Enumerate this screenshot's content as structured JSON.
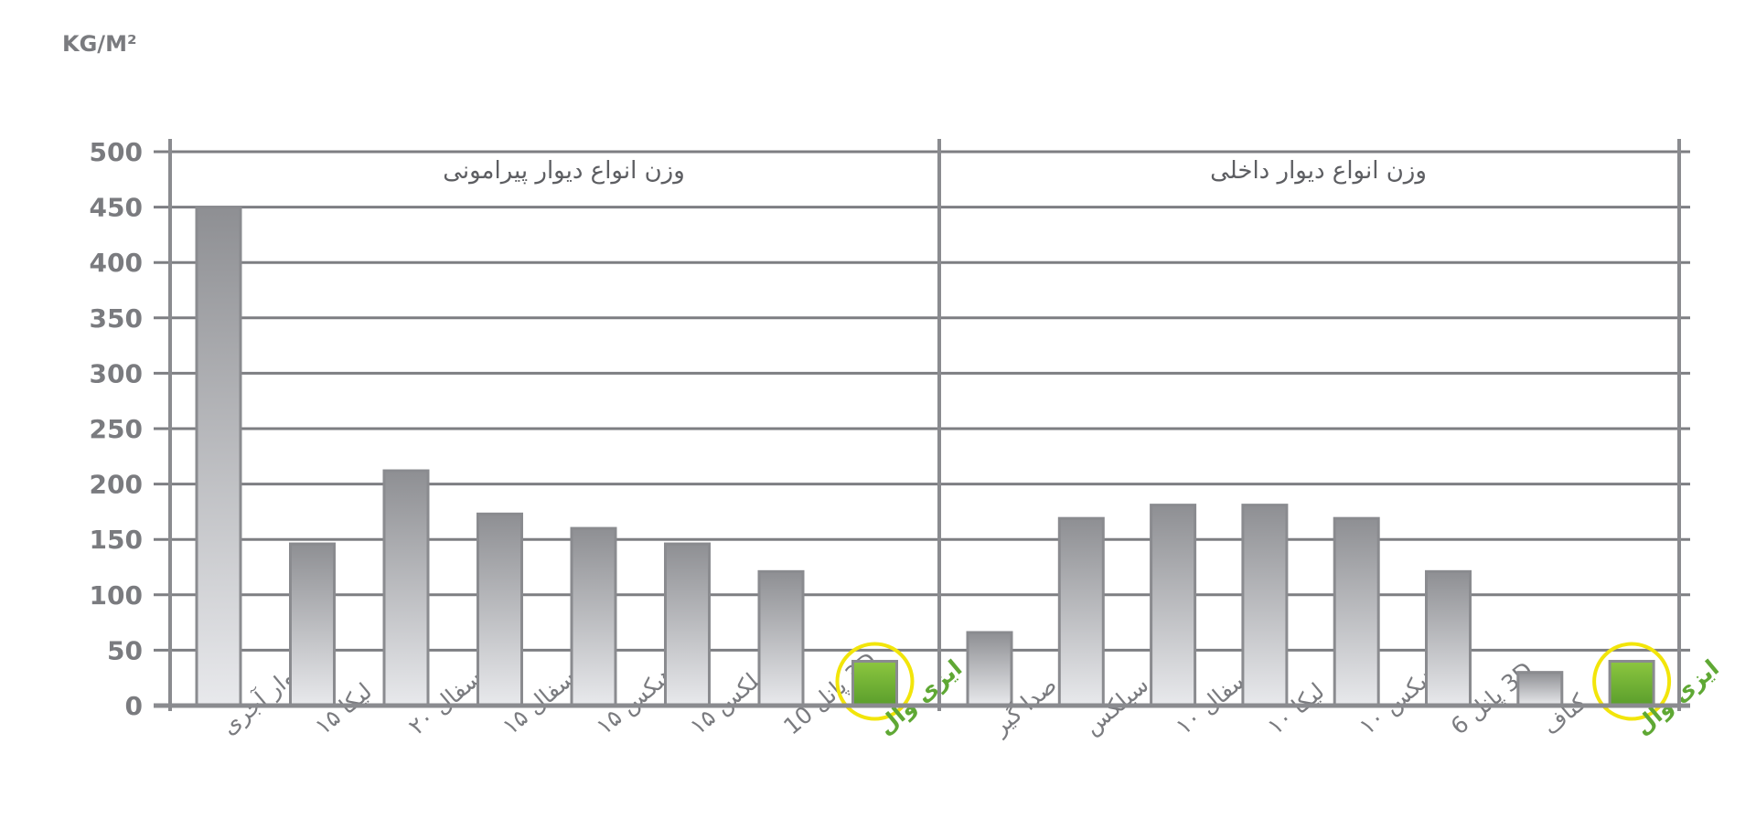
{
  "chart_data": {
    "type": "bar",
    "unit": "KG/M²",
    "ylim": [
      0,
      500
    ],
    "yticks": [
      0,
      50,
      100,
      150,
      200,
      250,
      300,
      350,
      400,
      450,
      500
    ],
    "grid": true,
    "groups": [
      {
        "title": "وزن انواع دیوار پیرامونی",
        "categories": [
          "دیوار آجری",
          "لیکا ۱۵",
          "سفال ۲۰",
          "سفال ۱۵",
          "هبکس ۱۵",
          "سیلکس ۱۵",
          "3D پانل 10",
          "ایزی وال"
        ],
        "values": [
          450,
          146,
          212,
          173,
          160,
          146,
          121,
          40
        ],
        "highlight": [
          false,
          false,
          false,
          false,
          false,
          false,
          false,
          true
        ]
      },
      {
        "title": "وزن انواع دیوار داخلی",
        "categories": [
          "صدا گیر",
          "سیلکس",
          "سفال ۱۰",
          "لیکا ۱۰",
          "هبکس ۱۰",
          "3D پانل 6",
          "کناف",
          "ایزی وال"
        ],
        "values": [
          66,
          169,
          181,
          181,
          169,
          121,
          30,
          40
        ],
        "highlight": [
          false,
          false,
          false,
          false,
          false,
          false,
          false,
          true
        ]
      }
    ]
  },
  "colors": {
    "axis": "#8a8b8f",
    "grid": "#7d7e82",
    "bar_top": "#8e8f93",
    "bar_bottom": "#e8e9ec",
    "bar_stroke": "#8a8b8f",
    "highlight_top": "#8cc63f",
    "highlight_bottom": "#5a9e2c",
    "highlight_ring": "#f2e50a",
    "highlight_text": "#5fa834",
    "text": "#7a7b7f"
  }
}
